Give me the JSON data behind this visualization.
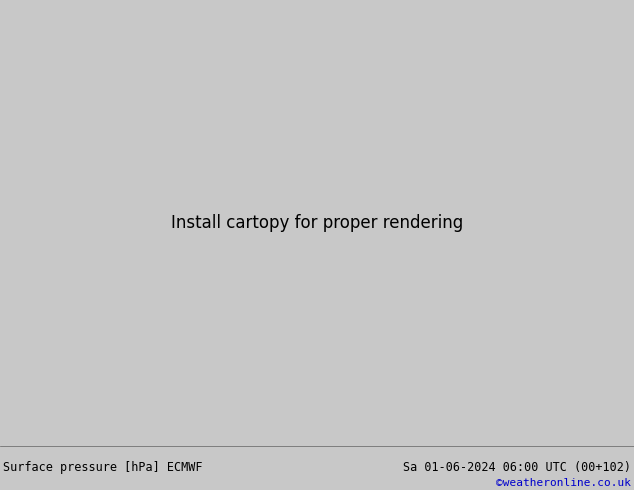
{
  "title_left": "Surface pressure [hPa] ECMWF",
  "title_right": "Sa 01-06-2024 06:00 UTC (00+102)",
  "credit": "©weatheronline.co.uk",
  "bg_color": "#c8c8c8",
  "land_color": "#a8d890",
  "sea_color": "#d0d8e0",
  "fig_width": 6.34,
  "fig_height": 4.9,
  "dpi": 100,
  "credit_color": "#0000cc",
  "blue_color": "#2255cc",
  "red_color": "#cc2222",
  "black_color": "#000000"
}
